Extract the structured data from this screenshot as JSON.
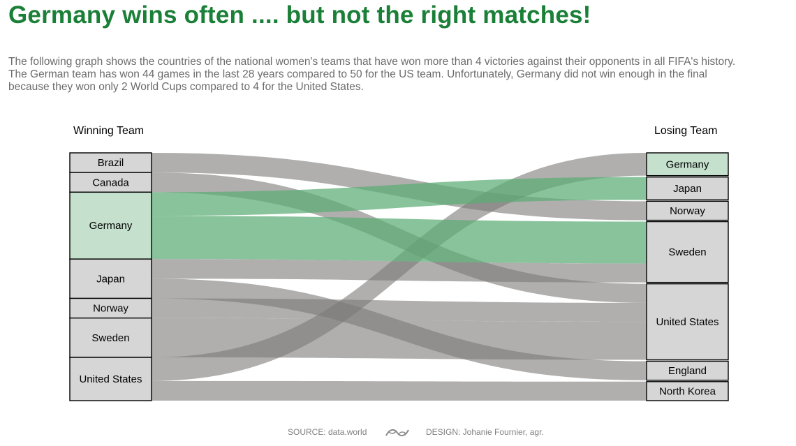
{
  "title": "Germany wins often .... but not the right matches!",
  "description": [
    "The following graph shows the countries of the national women's teams that have won more than 4 victories against their opponents in all FIFA's history.",
    "The German team has won 44 games in the last 28 years compared to 50 for the US team. Unfortunately, Germany did not win enough in the final",
    "because they won only 2 World Cups compared to 4 for the United States."
  ],
  "left_header": "Winning Team",
  "right_header": "Losing Team",
  "source": "SOURCE: data.world",
  "design": "DESIGN: Johanie Fournier, agr.",
  "colors": {
    "title": "#1a7f37",
    "highlight_fill": "#c5e0cc",
    "highlight_flow": "#5aac74",
    "neutral_fill": "#d6d6d6",
    "neutral_flow": "#7c7a78"
  },
  "chart_data": {
    "type": "sankey",
    "highlight": "Germany",
    "sources": [
      "Brazil",
      "Canada",
      "Germany",
      "Japan",
      "Norway",
      "Sweden",
      "United States"
    ],
    "targets": [
      "Germany",
      "Japan",
      "Norway",
      "Sweden",
      "United States",
      "England",
      "North Korea"
    ],
    "links": [
      {
        "source": "Brazil",
        "target": "Norway",
        "value": 5
      },
      {
        "source": "Canada",
        "target": "United States",
        "value": 5
      },
      {
        "source": "Germany",
        "target": "Japan",
        "value": 6
      },
      {
        "source": "Germany",
        "target": "Sweden",
        "value": 11
      },
      {
        "source": "Japan",
        "target": "Sweden",
        "value": 5
      },
      {
        "source": "Japan",
        "target": "England",
        "value": 5
      },
      {
        "source": "Norway",
        "target": "United States",
        "value": 5
      },
      {
        "source": "Sweden",
        "target": "United States",
        "value": 10
      },
      {
        "source": "United States",
        "target": "Germany",
        "value": 6
      },
      {
        "source": "United States",
        "target": "North Korea",
        "value": 5
      }
    ]
  }
}
